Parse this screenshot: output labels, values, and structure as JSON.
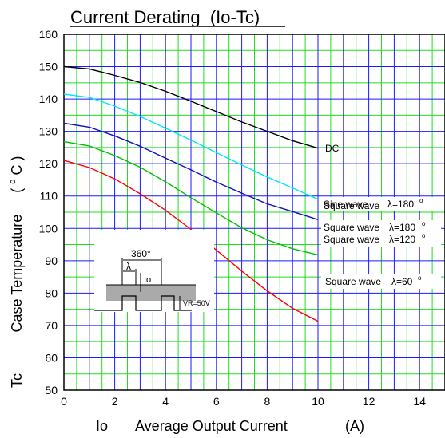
{
  "chart_data": {
    "type": "line",
    "title": "Current Derating  (Io-Tc)",
    "ylabel_symbol": "Tc",
    "ylabel": "Case Temperature",
    "ylabel_unit_o": "o",
    "ylabel_unit_c": "C",
    "ylabel_paren_open": "(",
    "ylabel_paren_close": ")",
    "xlabel_symbol": "Io",
    "xlabel": "Average Output Current",
    "xlabel_unit": "(A)",
    "xlim": [
      0,
      15
    ],
    "ylim": [
      50,
      160
    ],
    "xticks": [
      "0",
      "2",
      "4",
      "6",
      "8",
      "10",
      "12",
      "14"
    ],
    "yticks": [
      "50",
      "60",
      "70",
      "80",
      "90",
      "100",
      "110",
      "120",
      "130",
      "140",
      "150",
      "160"
    ],
    "grid": true,
    "colors": {
      "grid_vertical": "#1a1aff",
      "grid_horizontal_major": "#1a1aff",
      "grid_horizontal_minor": "#22dd22",
      "DC": "#000000",
      "sine_180": "#00e5ff",
      "square_180": "#1010c0",
      "square_120": "#00c000",
      "square_60": "#ff0000"
    },
    "series": [
      {
        "name": "DC",
        "color": "#000000",
        "x": [
          0,
          1,
          2,
          3,
          4,
          5,
          6,
          7,
          8,
          9,
          10
        ],
        "y": [
          150,
          149.3,
          147.3,
          145.1,
          142.4,
          139.3,
          136.1,
          132.9,
          130.0,
          127.1,
          124.8
        ]
      },
      {
        "name": "Sine wave",
        "color": "#00e5ff",
        "x": [
          0,
          1,
          2,
          3,
          4,
          5,
          6,
          7,
          8,
          9,
          10
        ],
        "y": [
          141.5,
          140.5,
          137.8,
          134.6,
          131.0,
          127.3,
          123.4,
          119.6,
          115.9,
          112.5,
          109.0
        ]
      },
      {
        "name": "Square wave",
        "color": "#1010c0",
        "x": [
          0,
          1,
          2,
          3,
          4,
          5,
          6,
          7,
          8,
          9,
          10
        ],
        "y": [
          132.5,
          131.3,
          128.6,
          125.4,
          121.7,
          118.1,
          114.3,
          110.9,
          107.6,
          105.2,
          102.7
        ]
      },
      {
        "name": "Square wave",
        "color": "#00c000",
        "x": [
          0,
          1,
          2,
          3,
          4,
          5,
          6,
          7,
          8,
          9,
          10
        ],
        "y": [
          126.8,
          125.5,
          122.5,
          118.9,
          114.4,
          109.5,
          104.8,
          100.2,
          96.5,
          93.7,
          91.8
        ]
      },
      {
        "name": "Square wave",
        "color": "#ff0000",
        "x": [
          0,
          1,
          2,
          3,
          4,
          5,
          6,
          7,
          8,
          9,
          10
        ],
        "y": [
          121.0,
          118.8,
          115.3,
          110.7,
          105.6,
          99.7,
          93.3,
          86.8,
          80.7,
          75.3,
          71.3
        ]
      }
    ],
    "annotations": {
      "dc": "DC",
      "sine_text": "Sine wave",
      "sine_angle": "λ=180",
      "sq180_text": "Square wave",
      "sq180_angle": "λ=180",
      "sq120_text": "Square wave",
      "sq120_angle": "λ=120",
      "sq60_text": "Square wave",
      "sq60_angle": "λ=60",
      "degree_mark": "o"
    },
    "inset": {
      "period_label": "360°",
      "lambda_label": "λ",
      "io_label": "Io",
      "vr_label": "VR=50V"
    }
  }
}
